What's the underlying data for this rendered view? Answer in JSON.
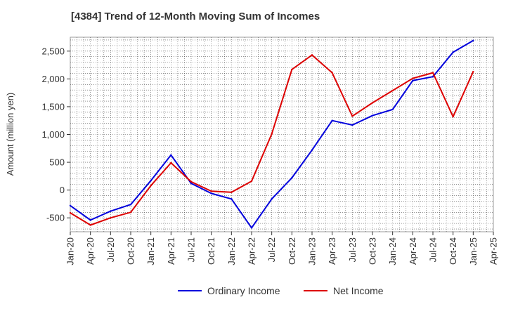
{
  "chart_data": {
    "type": "line",
    "title": "[4384]  Trend of 12-Month Moving Sum of Incomes",
    "xlabel": "",
    "ylabel": "Amount (million yen)",
    "ylim": [
      -750,
      2750
    ],
    "yticks": [
      -500,
      0,
      500,
      1000,
      1500,
      2000,
      2500
    ],
    "ytick_labels": [
      "-500",
      "0",
      "500",
      "1,000",
      "1,500",
      "2,000",
      "2,500"
    ],
    "categories": [
      "Jan-20",
      "Apr-20",
      "Jul-20",
      "Oct-20",
      "Jan-21",
      "Apr-21",
      "Jul-21",
      "Oct-21",
      "Jan-22",
      "Apr-22",
      "Jul-22",
      "Oct-22",
      "Jan-23",
      "Apr-23",
      "Jul-23",
      "Oct-23",
      "Jan-24",
      "Apr-24",
      "Jul-24",
      "Oct-24",
      "Jan-25",
      "Apr-25"
    ],
    "grid": true,
    "legend_position": "bottom-center",
    "series": [
      {
        "name": "Ordinary Income",
        "color": "#0000dd",
        "values": [
          -280,
          -540,
          -380,
          -260,
          170,
          630,
          120,
          -60,
          -160,
          -680,
          -160,
          220,
          720,
          1250,
          1170,
          1340,
          1450,
          1970,
          2040,
          2480,
          2690,
          null
        ]
      },
      {
        "name": "Net Income",
        "color": "#dd0000",
        "values": [
          -410,
          -630,
          -500,
          -400,
          80,
          490,
          150,
          -20,
          -40,
          160,
          1010,
          2170,
          2430,
          2110,
          1330,
          1570,
          1790,
          2010,
          2110,
          1320,
          2130,
          null
        ]
      }
    ]
  }
}
